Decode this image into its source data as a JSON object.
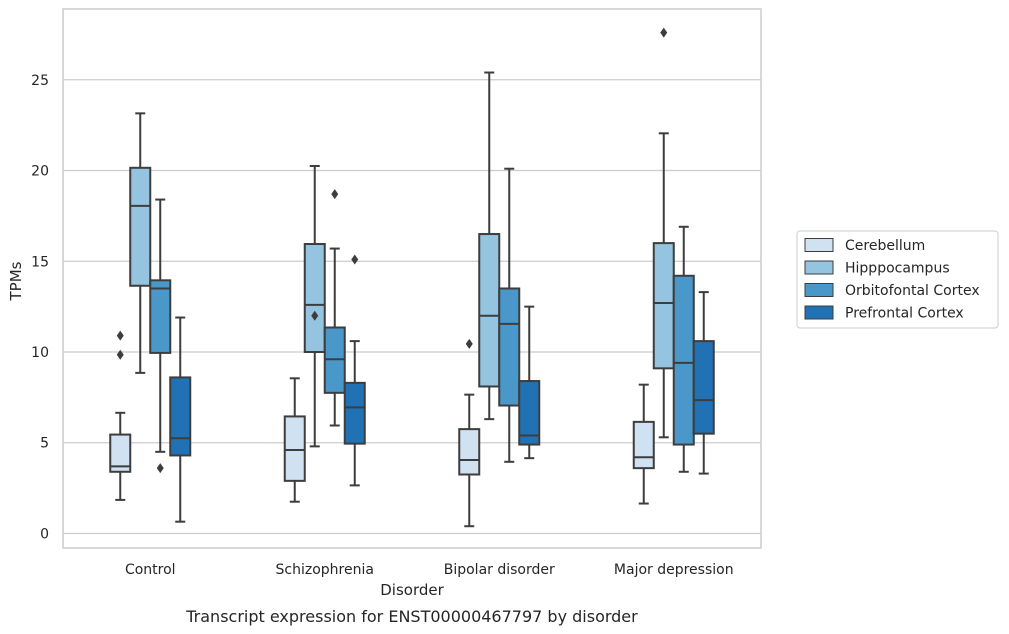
{
  "chart_data": {
    "type": "box",
    "title": "",
    "caption": "Transcript expression for ENST00000467797 by disorder",
    "xlabel": "Disorder",
    "ylabel": "TPMs",
    "ylim": [
      -0.8,
      28.9
    ],
    "yticks": [
      0,
      5,
      10,
      15,
      20,
      25
    ],
    "grid": "horizontal",
    "legend_position": "right",
    "categories": [
      "Control",
      "Schizophrenia",
      "Bipolar disorder",
      "Major depression"
    ],
    "series": [
      {
        "name": "Cerebellum",
        "color": "#d0e1f2",
        "boxes": [
          {
            "whislo": 1.85,
            "q1": 3.4,
            "med": 3.7,
            "q3": 5.45,
            "whishi": 6.65,
            "fliers": [
              9.85,
              10.9
            ]
          },
          {
            "whislo": 1.75,
            "q1": 2.9,
            "med": 4.6,
            "q3": 6.45,
            "whishi": 8.55,
            "fliers": []
          },
          {
            "whislo": 0.4,
            "q1": 3.25,
            "med": 4.05,
            "q3": 5.75,
            "whishi": 7.65,
            "fliers": [
              10.45
            ]
          },
          {
            "whislo": 1.65,
            "q1": 3.6,
            "med": 4.2,
            "q3": 6.15,
            "whishi": 8.2,
            "fliers": []
          }
        ]
      },
      {
        "name": "Hipppocampus",
        "color": "#94c4df",
        "boxes": [
          {
            "whislo": 8.85,
            "q1": 13.65,
            "med": 18.05,
            "q3": 20.15,
            "whishi": 23.15,
            "fliers": []
          },
          {
            "whislo": 4.8,
            "q1": 10.0,
            "med": 12.6,
            "q3": 15.95,
            "whishi": 20.25,
            "fliers": [
              12.0
            ]
          },
          {
            "whislo": 6.3,
            "q1": 8.1,
            "med": 12.0,
            "q3": 16.5,
            "whishi": 25.4,
            "fliers": []
          },
          {
            "whislo": 5.3,
            "q1": 9.1,
            "med": 12.7,
            "q3": 16.0,
            "whishi": 22.05,
            "fliers": [
              27.6
            ]
          }
        ]
      },
      {
        "name": "Orbitofontal Cortex",
        "color": "#4a98c9",
        "boxes": [
          {
            "whislo": 4.5,
            "q1": 9.95,
            "med": 13.5,
            "q3": 13.95,
            "whishi": 18.4,
            "fliers": [
              3.6
            ]
          },
          {
            "whislo": 5.95,
            "q1": 7.75,
            "med": 9.6,
            "q3": 11.35,
            "whishi": 15.7,
            "fliers": [
              18.7
            ]
          },
          {
            "whislo": 3.95,
            "q1": 7.05,
            "med": 11.55,
            "q3": 13.5,
            "whishi": 20.1,
            "fliers": []
          },
          {
            "whislo": 3.4,
            "q1": 4.9,
            "med": 9.4,
            "q3": 14.2,
            "whishi": 16.9,
            "fliers": []
          }
        ]
      },
      {
        "name": "Prefrontal Cortex",
        "color": "#2171b5",
        "boxes": [
          {
            "whislo": 0.65,
            "q1": 4.3,
            "med": 5.25,
            "q3": 8.6,
            "whishi": 11.9,
            "fliers": []
          },
          {
            "whislo": 2.65,
            "q1": 4.95,
            "med": 6.95,
            "q3": 8.3,
            "whishi": 10.6,
            "fliers": [
              15.1
            ]
          },
          {
            "whislo": 4.15,
            "q1": 4.9,
            "med": 5.4,
            "q3": 8.4,
            "whishi": 12.5,
            "fliers": []
          },
          {
            "whislo": 3.3,
            "q1": 5.5,
            "med": 7.35,
            "q3": 10.6,
            "whishi": 13.3,
            "fliers": []
          }
        ]
      }
    ]
  }
}
